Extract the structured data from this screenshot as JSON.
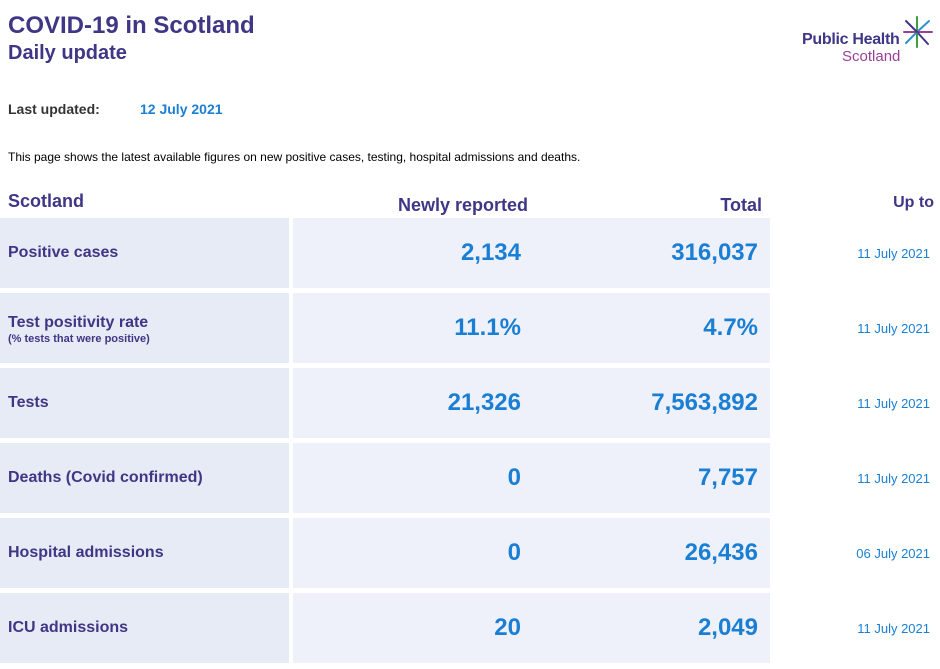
{
  "header": {
    "title": "COVID-19 in Scotland",
    "subtitle": "Daily update",
    "logo_line1": "Public Health",
    "logo_line2": "Scotland"
  },
  "updated": {
    "label": "Last updated:",
    "value": "12 July 2021"
  },
  "intro": "This page shows the latest available figures on new positive cases, testing, hospital admissions and deaths.",
  "table": {
    "headers": {
      "region": "Scotland",
      "newly_reported": "Newly reported",
      "total": "Total",
      "up_to": "Up to"
    },
    "rows": [
      {
        "label": "Positive cases",
        "sublabel": "",
        "new": "2,134",
        "total": "316,037",
        "up_to": "11 July 2021"
      },
      {
        "label": "Test positivity rate",
        "sublabel": "(% tests that were positive)",
        "new": "11.1%",
        "total": "4.7%",
        "up_to": "11 July 2021"
      },
      {
        "label": "Tests",
        "sublabel": "",
        "new": "21,326",
        "total": "7,563,892",
        "up_to": "11 July 2021"
      },
      {
        "label": "Deaths (Covid confirmed)",
        "sublabel": "",
        "new": "0",
        "total": "7,757",
        "up_to": "11 July 2021"
      },
      {
        "label": "Hospital admissions",
        "sublabel": "",
        "new": "0",
        "total": "26,436",
        "up_to": "06 July 2021"
      },
      {
        "label": "ICU admissions",
        "sublabel": "",
        "new": "20",
        "total": "2,049",
        "up_to": "11 July 2021"
      }
    ]
  },
  "colors": {
    "title": "#3f3685",
    "value": "#1a7fd4",
    "logo_accent": "#9b3f98",
    "label_bg": "#e7ebf5",
    "value_bg": "#eef1f9"
  },
  "icons": {
    "logo_star": "star-burst-icon"
  }
}
